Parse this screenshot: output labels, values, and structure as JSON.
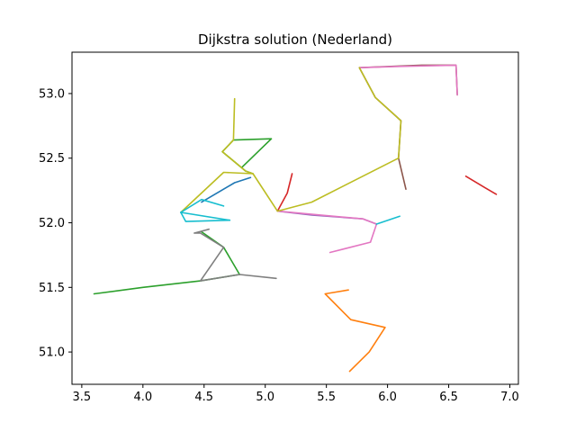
{
  "chart_data": {
    "type": "line",
    "title": "Dijkstra solution (Nederland)",
    "xlabel": "",
    "ylabel": "",
    "xlim": [
      3.42,
      7.07
    ],
    "ylim": [
      50.75,
      53.32
    ],
    "xticks": [
      3.5,
      4.0,
      4.5,
      5.0,
      5.5,
      6.0,
      6.5,
      7.0
    ],
    "xtick_labels": [
      "3.5",
      "4.0",
      "4.5",
      "5.0",
      "5.5",
      "6.0",
      "6.5",
      "7.0"
    ],
    "yticks": [
      51.0,
      51.5,
      52.0,
      52.5,
      53.0
    ],
    "ytick_labels": [
      "51.0",
      "51.5",
      "52.0",
      "52.5",
      "53.0"
    ],
    "grid": false,
    "legend": "none",
    "series": [
      {
        "color": "#1f77b4",
        "x": [
          4.48,
          4.75,
          4.88
        ],
        "y": [
          52.16,
          52.31,
          52.35
        ]
      },
      {
        "color": "#ff7f0e",
        "x": [
          5.69,
          5.85,
          5.98,
          5.7,
          5.49,
          5.68
        ],
        "y": [
          50.85,
          51.0,
          51.19,
          51.25,
          51.45,
          51.48
        ]
      },
      {
        "color": "#2ca02c",
        "x": [
          3.6,
          4.0,
          4.47,
          4.79,
          4.66,
          4.48
        ],
        "y": [
          51.45,
          51.5,
          51.55,
          51.6,
          51.81,
          51.93
        ]
      },
      {
        "color": "#2ca02c",
        "x": [
          4.81,
          5.05,
          4.74,
          4.65,
          4.84,
          4.9
        ],
        "y": [
          52.43,
          52.65,
          52.64,
          52.55,
          52.4,
          52.38
        ]
      },
      {
        "color": "#d62728",
        "x": [
          5.1,
          5.18,
          5.22
        ],
        "y": [
          52.09,
          52.23,
          52.38
        ]
      },
      {
        "color": "#d62728",
        "x": [
          6.64,
          6.8,
          6.89
        ],
        "y": [
          52.36,
          52.27,
          52.22
        ]
      },
      {
        "color": "#9467bd",
        "x": [
          5.1,
          5.38,
          5.8,
          5.91
        ],
        "y": [
          52.09,
          52.06,
          52.03,
          51.99
        ]
      },
      {
        "color": "#8c564b",
        "x": [
          6.57,
          6.56,
          6.28,
          5.77
        ],
        "y": [
          52.99,
          53.22,
          53.22,
          53.2
        ]
      },
      {
        "color": "#8c564b",
        "x": [
          6.15,
          6.09,
          6.11,
          5.9,
          5.77
        ],
        "y": [
          52.26,
          52.5,
          52.79,
          52.97,
          53.2
        ]
      },
      {
        "color": "#e377c2",
        "x": [
          5.1,
          5.8,
          5.91,
          5.86,
          5.53
        ],
        "y": [
          52.09,
          52.03,
          51.99,
          51.85,
          51.77
        ]
      },
      {
        "color": "#e377c2",
        "x": [
          5.77,
          6.1,
          6.56,
          6.57
        ],
        "y": [
          53.2,
          53.21,
          53.22,
          52.99
        ]
      },
      {
        "color": "#7f7f7f",
        "x": [
          4.54,
          4.42,
          4.47,
          4.66,
          4.47,
          4.79,
          5.09
        ],
        "y": [
          51.95,
          51.92,
          51.92,
          51.81,
          51.55,
          51.6,
          51.57
        ]
      },
      {
        "color": "#bcbd22",
        "x": [
          4.75,
          4.74,
          4.65,
          4.84,
          4.9,
          5.1,
          5.38,
          6.09,
          6.11,
          5.9,
          5.77
        ],
        "y": [
          52.96,
          52.64,
          52.55,
          52.4,
          52.38,
          52.09,
          52.16,
          52.5,
          52.79,
          52.97,
          53.2
        ]
      },
      {
        "color": "#bcbd22",
        "x": [
          4.9,
          4.66,
          4.31
        ],
        "y": [
          52.38,
          52.39,
          52.08
        ]
      },
      {
        "color": "#17becf",
        "x": [
          4.31,
          4.48,
          4.66
        ],
        "y": [
          52.08,
          52.18,
          52.13
        ]
      },
      {
        "color": "#17becf",
        "x": [
          4.31,
          4.71
        ],
        "y": [
          52.08,
          52.02
        ]
      },
      {
        "color": "#17becf",
        "x": [
          4.31,
          4.35,
          4.71
        ],
        "y": [
          52.08,
          52.01,
          52.02
        ]
      },
      {
        "color": "#17becf",
        "x": [
          5.91,
          6.1
        ],
        "y": [
          51.99,
          52.05
        ]
      }
    ]
  }
}
